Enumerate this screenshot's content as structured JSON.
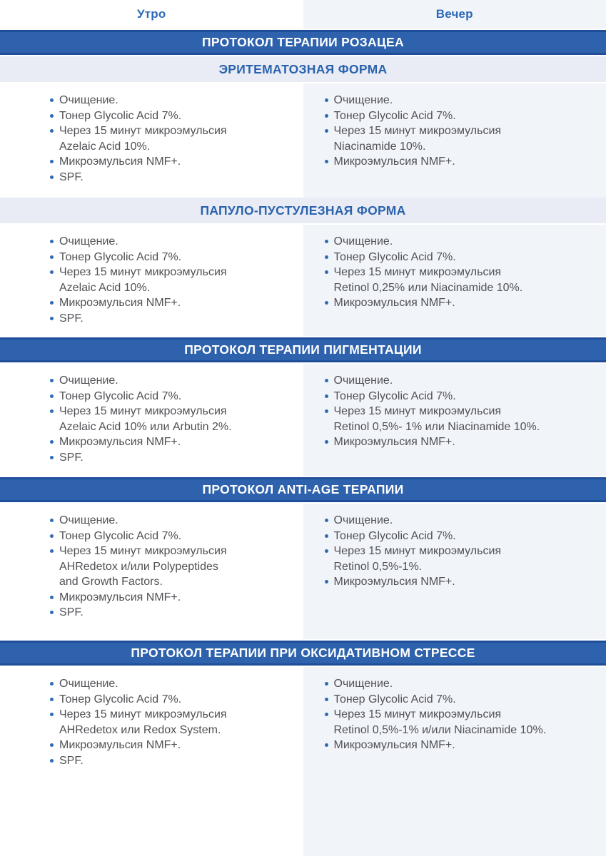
{
  "header": {
    "morning": "Утро",
    "evening": "Вечер"
  },
  "banners": {
    "rosacea": "ПРОТОКОЛ ТЕРАПИИ РОЗАЦЕА",
    "erythematous": "ЭРИТЕМАТОЗНАЯ ФОРМА",
    "papulopustular": "ПАПУЛО-ПУСТУЛЕЗНАЯ ФОРМА",
    "pigmentation": "ПРОТОКОЛ ТЕРАПИИ ПИГМЕНТАЦИИ",
    "antiage": "ПРОТОКОЛ ANTI-AGE ТЕРАПИИ",
    "oxidative": "ПРОТОКОЛ ТЕРАПИИ ПРИ ОКСИДАТИВНОМ СТРЕССЕ"
  },
  "protocols": {
    "erythematous": {
      "morning": [
        "Очищение.",
        "Тонер Glycolic Acid 7%.",
        "Через 15 минут микроэмульсия\nAzelaic Acid 10%.",
        "Микроэмульсия NMF+.",
        "SPF."
      ],
      "evening": [
        "Очищение.",
        "Тонер Glycolic Acid 7%.",
        "Через 15 минут микроэмульсия\nNiacinamide 10%.",
        "Микроэмульсия NMF+."
      ]
    },
    "papulopustular": {
      "morning": [
        "Очищение.",
        "Тонер Glycolic Acid 7%.",
        "Через 15 минут микроэмульсия\nAzelaic Acid 10%.",
        "Микроэмульсия NMF+.",
        "SPF."
      ],
      "evening": [
        "Очищение.",
        "Тонер Glycolic Acid 7%.",
        "Через 15 минут микроэмульсия\nRetinol 0,25% или Niacinamide 10%.",
        "Микроэмульсия NMF+."
      ]
    },
    "pigmentation": {
      "morning": [
        "Очищение.",
        "Тонер Glycolic Acid 7%.",
        "Через 15 минут микроэмульсия\nAzelaic Acid 10% или Arbutin 2%.",
        "Микроэмульсия NMF+.",
        "SPF."
      ],
      "evening": [
        "Очищение.",
        "Тонер Glycolic Acid 7%.",
        "Через 15 минут микроэмульсия\nRetinol 0,5%- 1% или Niacinamide 10%.",
        "Микроэмульсия NMF+."
      ]
    },
    "antiage": {
      "morning": [
        "Очищение.",
        "Тонер Glycolic Acid 7%.",
        "Через 15 минут микроэмульсия\nAHRedetox и/или Polypeptides\nand Growth Factors.",
        "Микроэмульсия NMF+.",
        "SPF."
      ],
      "evening": [
        "Очищение.",
        "Тонер Glycolic Acid 7%.",
        "Через 15 минут микроэмульсия\nRetinol 0,5%-1%.",
        "Микроэмульсия NMF+."
      ]
    },
    "oxidative": {
      "morning": [
        "Очищение.",
        "Тонер Glycolic Acid 7%.",
        "Через 15 минут микроэмульсия\nAHRedetox или Redox System.",
        "Микроэмульсия NMF+.",
        "SPF."
      ],
      "evening": [
        "Очищение.",
        "Тонер Glycolic Acid 7%.",
        "Через 15 минут микроэмульсия\nRetinol 0,5%-1% и/или Niacinamide 10%.",
        "Микроэмульсия NMF+."
      ]
    }
  },
  "colors": {
    "primary_banner_bg": "#2e62ad",
    "primary_banner_edge": "#1f4e99",
    "secondary_banner_bg": "#e9ecf4",
    "accent_blue_text": "#2a62ae",
    "evening_column_bg": "#f1f4f9",
    "body_text": "#515156",
    "bullet": "#2e6bb5"
  }
}
